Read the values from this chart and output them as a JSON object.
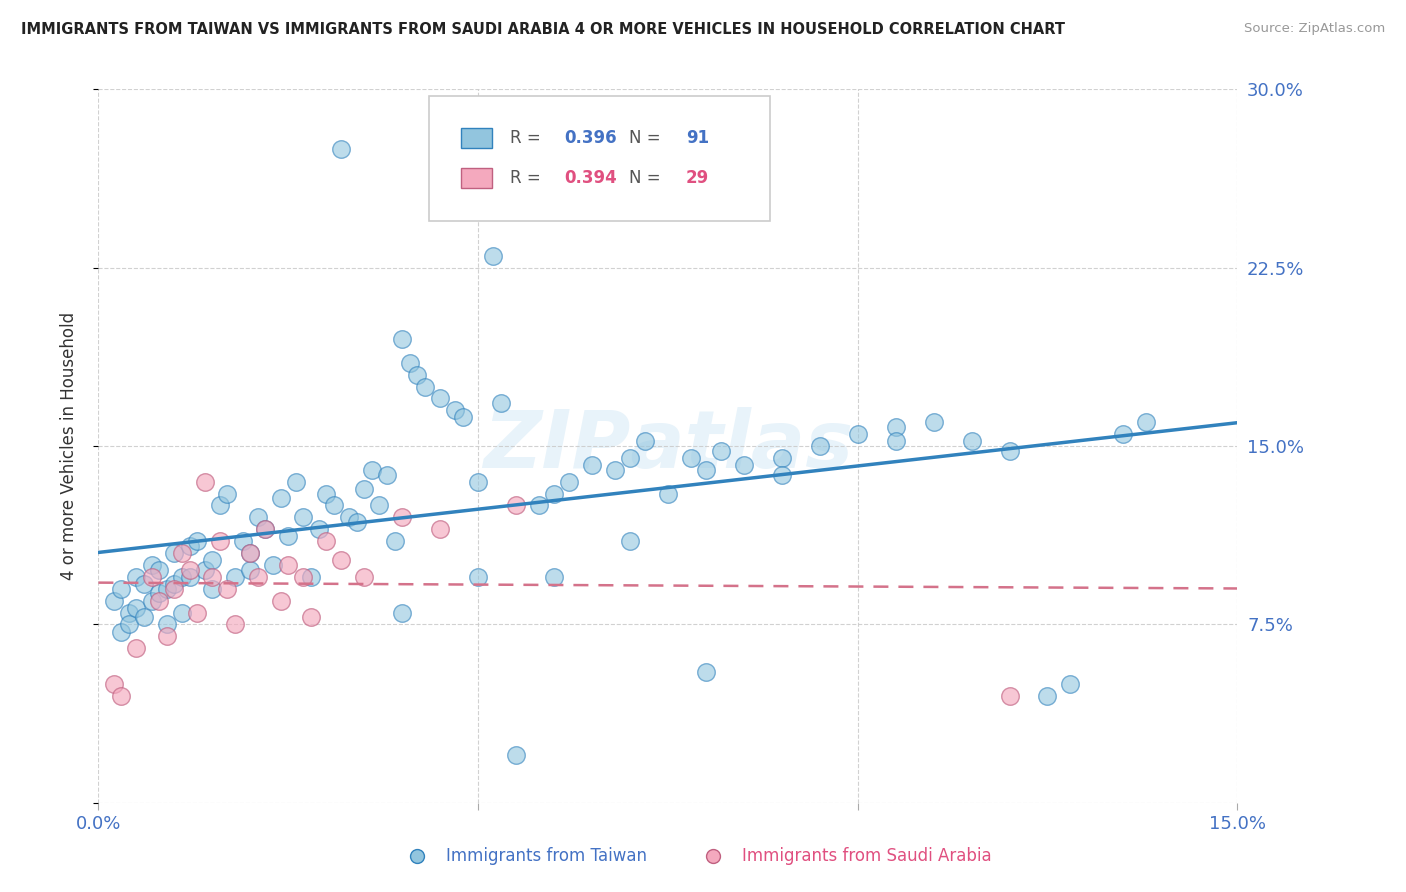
{
  "title": "IMMIGRANTS FROM TAIWAN VS IMMIGRANTS FROM SAUDI ARABIA 4 OR MORE VEHICLES IN HOUSEHOLD CORRELATION CHART",
  "source": "Source: ZipAtlas.com",
  "ylabel_label": "4 or more Vehicles in Household",
  "xlim": [
    0.0,
    15.0
  ],
  "ylim": [
    0.0,
    30.0
  ],
  "taiwan_R": 0.396,
  "taiwan_N": 91,
  "saudi_R": 0.394,
  "saudi_N": 29,
  "taiwan_color": "#92c5de",
  "saudi_color": "#f4a9be",
  "taiwan_line_color": "#3182bd",
  "saudi_line_color": "#d4728a",
  "watermark": "ZIPAtlas",
  "background_color": "#ffffff",
  "grid_color": "#cccccc",
  "taiwan_x": [
    0.2,
    0.3,
    0.3,
    0.4,
    0.4,
    0.5,
    0.5,
    0.6,
    0.6,
    0.7,
    0.7,
    0.8,
    0.8,
    0.9,
    0.9,
    1.0,
    1.0,
    1.1,
    1.1,
    1.2,
    1.2,
    1.3,
    1.4,
    1.5,
    1.5,
    1.6,
    1.7,
    1.8,
    1.9,
    2.0,
    2.0,
    2.1,
    2.2,
    2.3,
    2.4,
    2.5,
    2.6,
    2.7,
    2.8,
    2.9,
    3.0,
    3.1,
    3.2,
    3.3,
    3.4,
    3.5,
    3.6,
    3.7,
    3.8,
    3.9,
    4.0,
    4.1,
    4.2,
    4.3,
    4.5,
    4.7,
    4.8,
    5.0,
    5.2,
    5.3,
    5.5,
    5.8,
    6.0,
    6.2,
    6.5,
    6.8,
    7.0,
    7.2,
    7.5,
    7.8,
    8.0,
    8.2,
    8.5,
    9.0,
    9.5,
    10.0,
    10.5,
    11.0,
    11.5,
    12.0,
    12.5,
    4.0,
    5.0,
    6.0,
    7.0,
    8.0,
    9.0,
    10.5,
    12.8,
    13.5,
    13.8
  ],
  "taiwan_y": [
    8.5,
    7.2,
    9.0,
    8.0,
    7.5,
    9.5,
    8.2,
    7.8,
    9.2,
    8.5,
    10.0,
    9.8,
    8.8,
    9.0,
    7.5,
    10.5,
    9.2,
    8.0,
    9.5,
    10.8,
    9.5,
    11.0,
    9.8,
    10.2,
    9.0,
    12.5,
    13.0,
    9.5,
    11.0,
    10.5,
    9.8,
    12.0,
    11.5,
    10.0,
    12.8,
    11.2,
    13.5,
    12.0,
    9.5,
    11.5,
    13.0,
    12.5,
    27.5,
    12.0,
    11.8,
    13.2,
    14.0,
    12.5,
    13.8,
    11.0,
    19.5,
    18.5,
    18.0,
    17.5,
    17.0,
    16.5,
    16.2,
    13.5,
    23.0,
    16.8,
    2.0,
    12.5,
    13.0,
    13.5,
    14.2,
    14.0,
    14.5,
    15.2,
    13.0,
    14.5,
    14.0,
    14.8,
    14.2,
    14.5,
    15.0,
    15.5,
    15.8,
    16.0,
    15.2,
    14.8,
    4.5,
    8.0,
    9.5,
    9.5,
    11.0,
    5.5,
    13.8,
    15.2,
    5.0,
    15.5,
    16.0
  ],
  "saudi_x": [
    0.2,
    0.3,
    0.5,
    0.7,
    0.8,
    0.9,
    1.0,
    1.1,
    1.2,
    1.3,
    1.4,
    1.5,
    1.6,
    1.7,
    1.8,
    2.0,
    2.1,
    2.2,
    2.4,
    2.5,
    2.7,
    2.8,
    3.0,
    3.2,
    3.5,
    4.0,
    4.5,
    5.5,
    12.0
  ],
  "saudi_y": [
    5.0,
    4.5,
    6.5,
    9.5,
    8.5,
    7.0,
    9.0,
    10.5,
    9.8,
    8.0,
    13.5,
    9.5,
    11.0,
    9.0,
    7.5,
    10.5,
    9.5,
    11.5,
    8.5,
    10.0,
    9.5,
    7.8,
    11.0,
    10.2,
    9.5,
    12.0,
    11.5,
    12.5,
    4.5
  ]
}
